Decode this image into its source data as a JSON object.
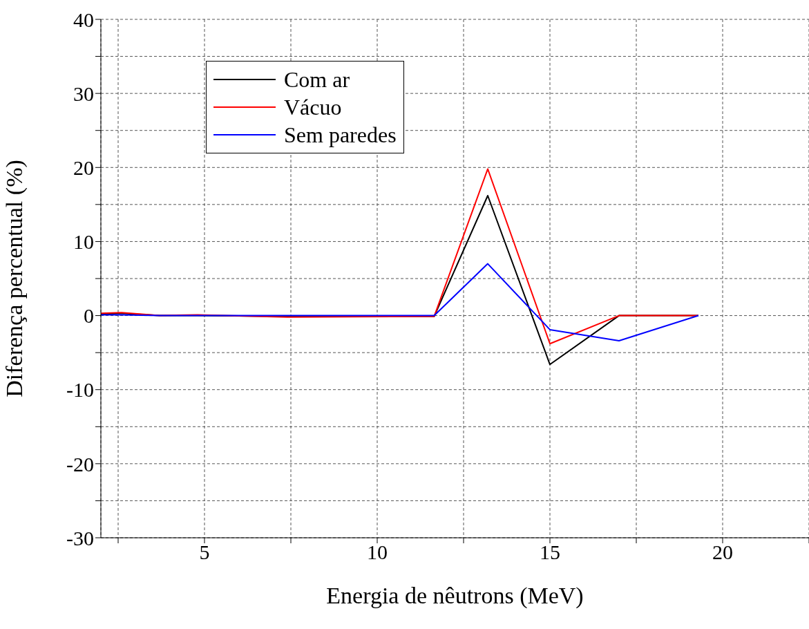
{
  "chart_data": {
    "type": "line",
    "xlabel": "Energia de nêutrons (MeV)",
    "ylabel": "Diferença percentual (%)",
    "xlim": [
      2,
      22.5
    ],
    "ylim": [
      -30,
      40
    ],
    "xticks": [
      {
        "value": 2.5,
        "label": null
      },
      5,
      {
        "value": 7.5,
        "label": null
      },
      10,
      {
        "value": 12.5,
        "label": null
      },
      15,
      {
        "value": 17.5,
        "label": null
      },
      20,
      {
        "value": 22.5,
        "label": null
      }
    ],
    "yticks": [
      -30,
      {
        "value": -25,
        "label": null
      },
      -20,
      {
        "value": -15,
        "label": null
      },
      -10,
      {
        "value": -5,
        "label": null
      },
      0,
      {
        "value": 5,
        "label": null
      },
      10,
      {
        "value": 15,
        "label": null
      },
      20,
      {
        "value": 25,
        "label": null
      },
      30,
      {
        "value": 35,
        "label": null
      },
      40
    ],
    "grid": true,
    "legend": "top left",
    "marker": "none",
    "line_style": "solid",
    "series": [
      {
        "name": "Com ar",
        "color": "#000000",
        "x": [
          2,
          2.6,
          3.7,
          4.8,
          7.4,
          11.65,
          13.2,
          15,
          17,
          19.3
        ],
        "values": [
          0.2,
          0.3,
          0,
          0,
          -0.1,
          -0.1,
          16.2,
          -6.6,
          0,
          0
        ]
      },
      {
        "name": "Vácuo",
        "color": "#ff0000",
        "x": [
          2,
          2.6,
          3.7,
          4.8,
          7.4,
          11.65,
          13.2,
          15,
          17,
          19.3
        ],
        "values": [
          0.3,
          0.4,
          0,
          0.1,
          -0.2,
          -0.1,
          19.8,
          -3.8,
          0,
          0
        ]
      },
      {
        "name": "Sem paredes",
        "color": "#0000ff",
        "x": [
          2,
          2.6,
          3.7,
          4.8,
          7.4,
          11.65,
          13.2,
          15,
          17,
          19.3
        ],
        "values": [
          0.1,
          0.1,
          0,
          0,
          0,
          0,
          7,
          -1.9,
          -3.4,
          0
        ]
      }
    ]
  }
}
